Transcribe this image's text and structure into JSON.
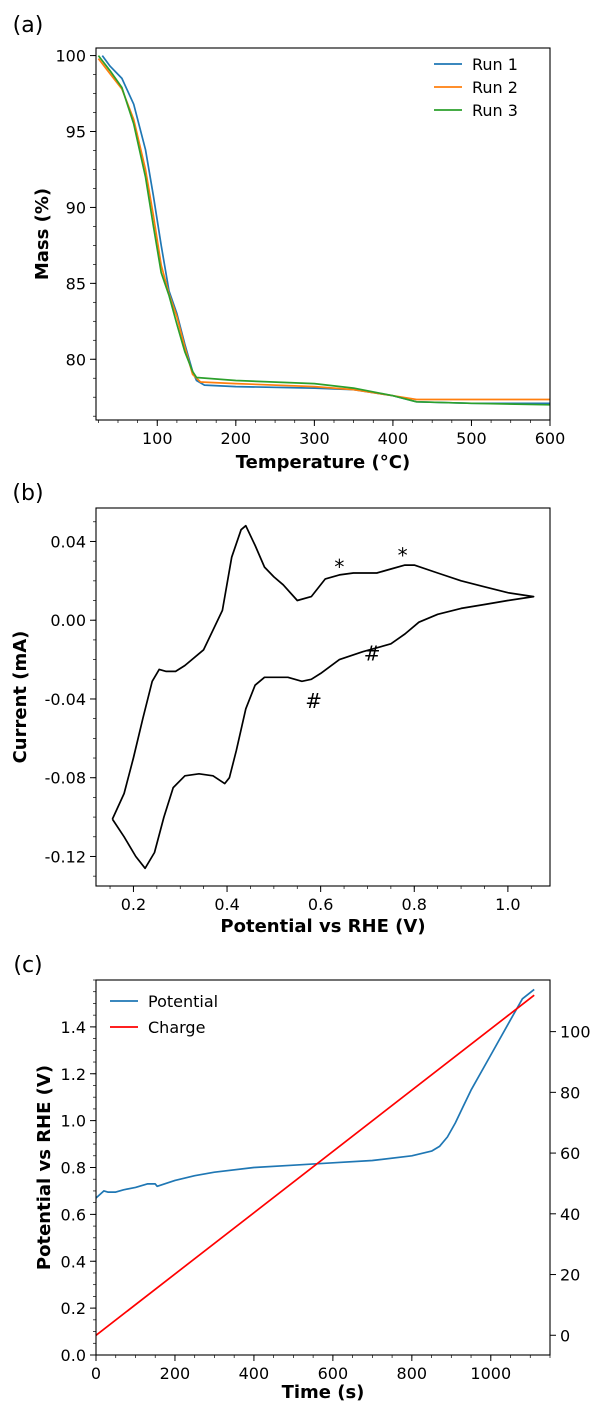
{
  "chart_data": [
    {
      "panel_label": "(a)",
      "type": "line",
      "title": "",
      "xlabel": "Temperature (°C)",
      "ylabel": "Mass (%)",
      "xlim": [
        22,
        600
      ],
      "ylim": [
        76,
        100.5
      ],
      "xticks": [
        100,
        200,
        300,
        400,
        500,
        600
      ],
      "yticks": [
        80,
        85,
        90,
        95,
        100
      ],
      "legend": "top-right",
      "series": [
        {
          "name": "Run 1",
          "color": "#1f77b4",
          "x": [
            30,
            40,
            55,
            70,
            85,
            95,
            105,
            115,
            125,
            135,
            145,
            150,
            160,
            200,
            300,
            350,
            400,
            430,
            500,
            600
          ],
          "y": [
            100,
            99.3,
            98.5,
            96.8,
            93.8,
            90.8,
            87.5,
            84.5,
            83.0,
            81.0,
            79.2,
            78.6,
            78.3,
            78.2,
            78.1,
            78.0,
            77.6,
            77.2,
            77.1,
            77.1
          ]
        },
        {
          "name": "Run 2",
          "color": "#ff7f0e",
          "x": [
            25,
            40,
            55,
            70,
            85,
            95,
            105,
            115,
            125,
            135,
            145,
            155,
            200,
            300,
            350,
            400,
            430,
            500,
            600
          ],
          "y": [
            99.8,
            98.8,
            97.8,
            95.8,
            92.5,
            89.5,
            86.2,
            84.3,
            82.8,
            80.8,
            79.0,
            78.5,
            78.4,
            78.2,
            78.0,
            77.6,
            77.35,
            77.35,
            77.35
          ]
        },
        {
          "name": "Run 3",
          "color": "#2ca02c",
          "x": [
            25,
            40,
            55,
            70,
            85,
            95,
            105,
            115,
            125,
            135,
            145,
            150,
            200,
            300,
            350,
            400,
            430,
            500,
            600
          ],
          "y": [
            100,
            99.0,
            97.9,
            95.5,
            92.0,
            88.8,
            85.7,
            84.2,
            82.3,
            80.5,
            79.2,
            78.8,
            78.6,
            78.4,
            78.1,
            77.6,
            77.2,
            77.1,
            77.0
          ]
        }
      ]
    },
    {
      "panel_label": "(b)",
      "type": "line",
      "title": "",
      "xlabel": "Potential vs RHE (V)",
      "ylabel": "Current (mA)",
      "xlim": [
        0.12,
        1.09
      ],
      "ylim": [
        -0.135,
        0.057
      ],
      "xticks": [
        0.2,
        0.4,
        0.6,
        0.8,
        1.0
      ],
      "yticks": [
        0.04,
        0.0,
        -0.04,
        -0.08,
        -0.12
      ],
      "xtick_labels": [
        "0.2",
        "0.4",
        "0.6",
        "0.8",
        "1.0"
      ],
      "ytick_labels": [
        "0.04",
        "0.00",
        "-0.04",
        "-0.08",
        "-0.12"
      ],
      "annotations": [
        {
          "text": "*",
          "x": 0.64,
          "y": 0.027
        },
        {
          "text": "*",
          "x": 0.775,
          "y": 0.033
        },
        {
          "text": "#",
          "x": 0.585,
          "y": -0.041
        },
        {
          "text": "#",
          "x": 0.71,
          "y": -0.017
        }
      ],
      "series": [
        {
          "color": "#000000",
          "x": [
            0.155,
            0.18,
            0.205,
            0.225,
            0.245,
            0.265,
            0.285,
            0.31,
            0.34,
            0.37,
            0.395,
            0.405,
            0.42,
            0.44,
            0.46,
            0.48,
            0.5,
            0.53,
            0.56,
            0.58,
            0.6,
            0.64,
            0.69,
            0.72,
            0.75,
            0.78,
            0.81,
            0.85,
            0.9,
            0.95,
            1.0,
            1.055,
            1.0,
            0.95,
            0.9,
            0.85,
            0.8,
            0.78,
            0.75,
            0.72,
            0.7,
            0.67,
            0.64,
            0.61,
            0.58,
            0.55,
            0.52,
            0.5,
            0.48,
            0.46,
            0.44,
            0.43,
            0.41,
            0.39,
            0.35,
            0.31,
            0.29,
            0.27,
            0.255,
            0.24,
            0.22,
            0.2,
            0.18,
            0.155
          ],
          "y": [
            -0.101,
            -0.11,
            -0.12,
            -0.126,
            -0.118,
            -0.1,
            -0.085,
            -0.079,
            -0.078,
            -0.079,
            -0.083,
            -0.08,
            -0.066,
            -0.045,
            -0.033,
            -0.029,
            -0.029,
            -0.029,
            -0.031,
            -0.03,
            -0.027,
            -0.02,
            -0.016,
            -0.014,
            -0.012,
            -0.007,
            -0.001,
            0.003,
            0.006,
            0.008,
            0.01,
            0.012,
            0.014,
            0.017,
            0.02,
            0.024,
            0.028,
            0.028,
            0.026,
            0.024,
            0.024,
            0.024,
            0.023,
            0.021,
            0.012,
            0.01,
            0.018,
            0.022,
            0.027,
            0.038,
            0.048,
            0.046,
            0.032,
            0.005,
            -0.015,
            -0.023,
            -0.026,
            -0.026,
            -0.025,
            -0.031,
            -0.05,
            -0.07,
            -0.088,
            -0.101
          ]
        }
      ]
    },
    {
      "panel_label": "(c)",
      "type": "line",
      "title": "",
      "xlabel": "Time (s)",
      "ylabel": "Potential vs RHE (V)",
      "xlim": [
        0,
        1150
      ],
      "ylim": [
        0.0,
        1.6
      ],
      "y2lim": [
        -6.5,
        117
      ],
      "xticks": [
        0,
        200,
        400,
        600,
        800,
        1000
      ],
      "yticks": [
        0.0,
        0.2,
        0.4,
        0.6,
        0.8,
        1.0,
        1.2,
        1.4
      ],
      "ytick_labels": [
        "0.0",
        "0.2",
        "0.4",
        "0.6",
        "0.8",
        "1.0",
        "1.2",
        "1.4"
      ],
      "y2ticks": [
        0,
        20,
        40,
        60,
        80,
        100
      ],
      "legend": "top-left",
      "series": [
        {
          "name": "Potential",
          "color": "#1f77b4",
          "axis": "left",
          "x": [
            0,
            10,
            20,
            30,
            50,
            70,
            100,
            130,
            150,
            155,
            200,
            250,
            300,
            400,
            500,
            600,
            700,
            800,
            850,
            870,
            890,
            910,
            930,
            950,
            1000,
            1050,
            1080,
            1110
          ],
          "y": [
            0.67,
            0.685,
            0.7,
            0.695,
            0.695,
            0.705,
            0.715,
            0.73,
            0.73,
            0.72,
            0.745,
            0.765,
            0.78,
            0.8,
            0.81,
            0.82,
            0.83,
            0.85,
            0.87,
            0.89,
            0.93,
            0.99,
            1.06,
            1.13,
            1.28,
            1.43,
            1.52,
            1.56
          ]
        },
        {
          "name": "Charge",
          "color": "#ff0000",
          "axis": "right",
          "x": [
            0,
            1110
          ],
          "y": [
            0,
            112
          ]
        }
      ]
    }
  ]
}
